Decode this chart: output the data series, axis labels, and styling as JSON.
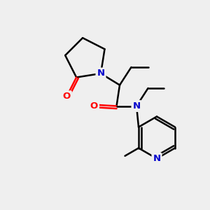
{
  "bg_color": "#efefef",
  "atom_colors": {
    "N": "#0000cc",
    "O": "#ff0000",
    "bond": "#000000"
  },
  "figsize": [
    3.0,
    3.0
  ],
  "dpi": 100
}
